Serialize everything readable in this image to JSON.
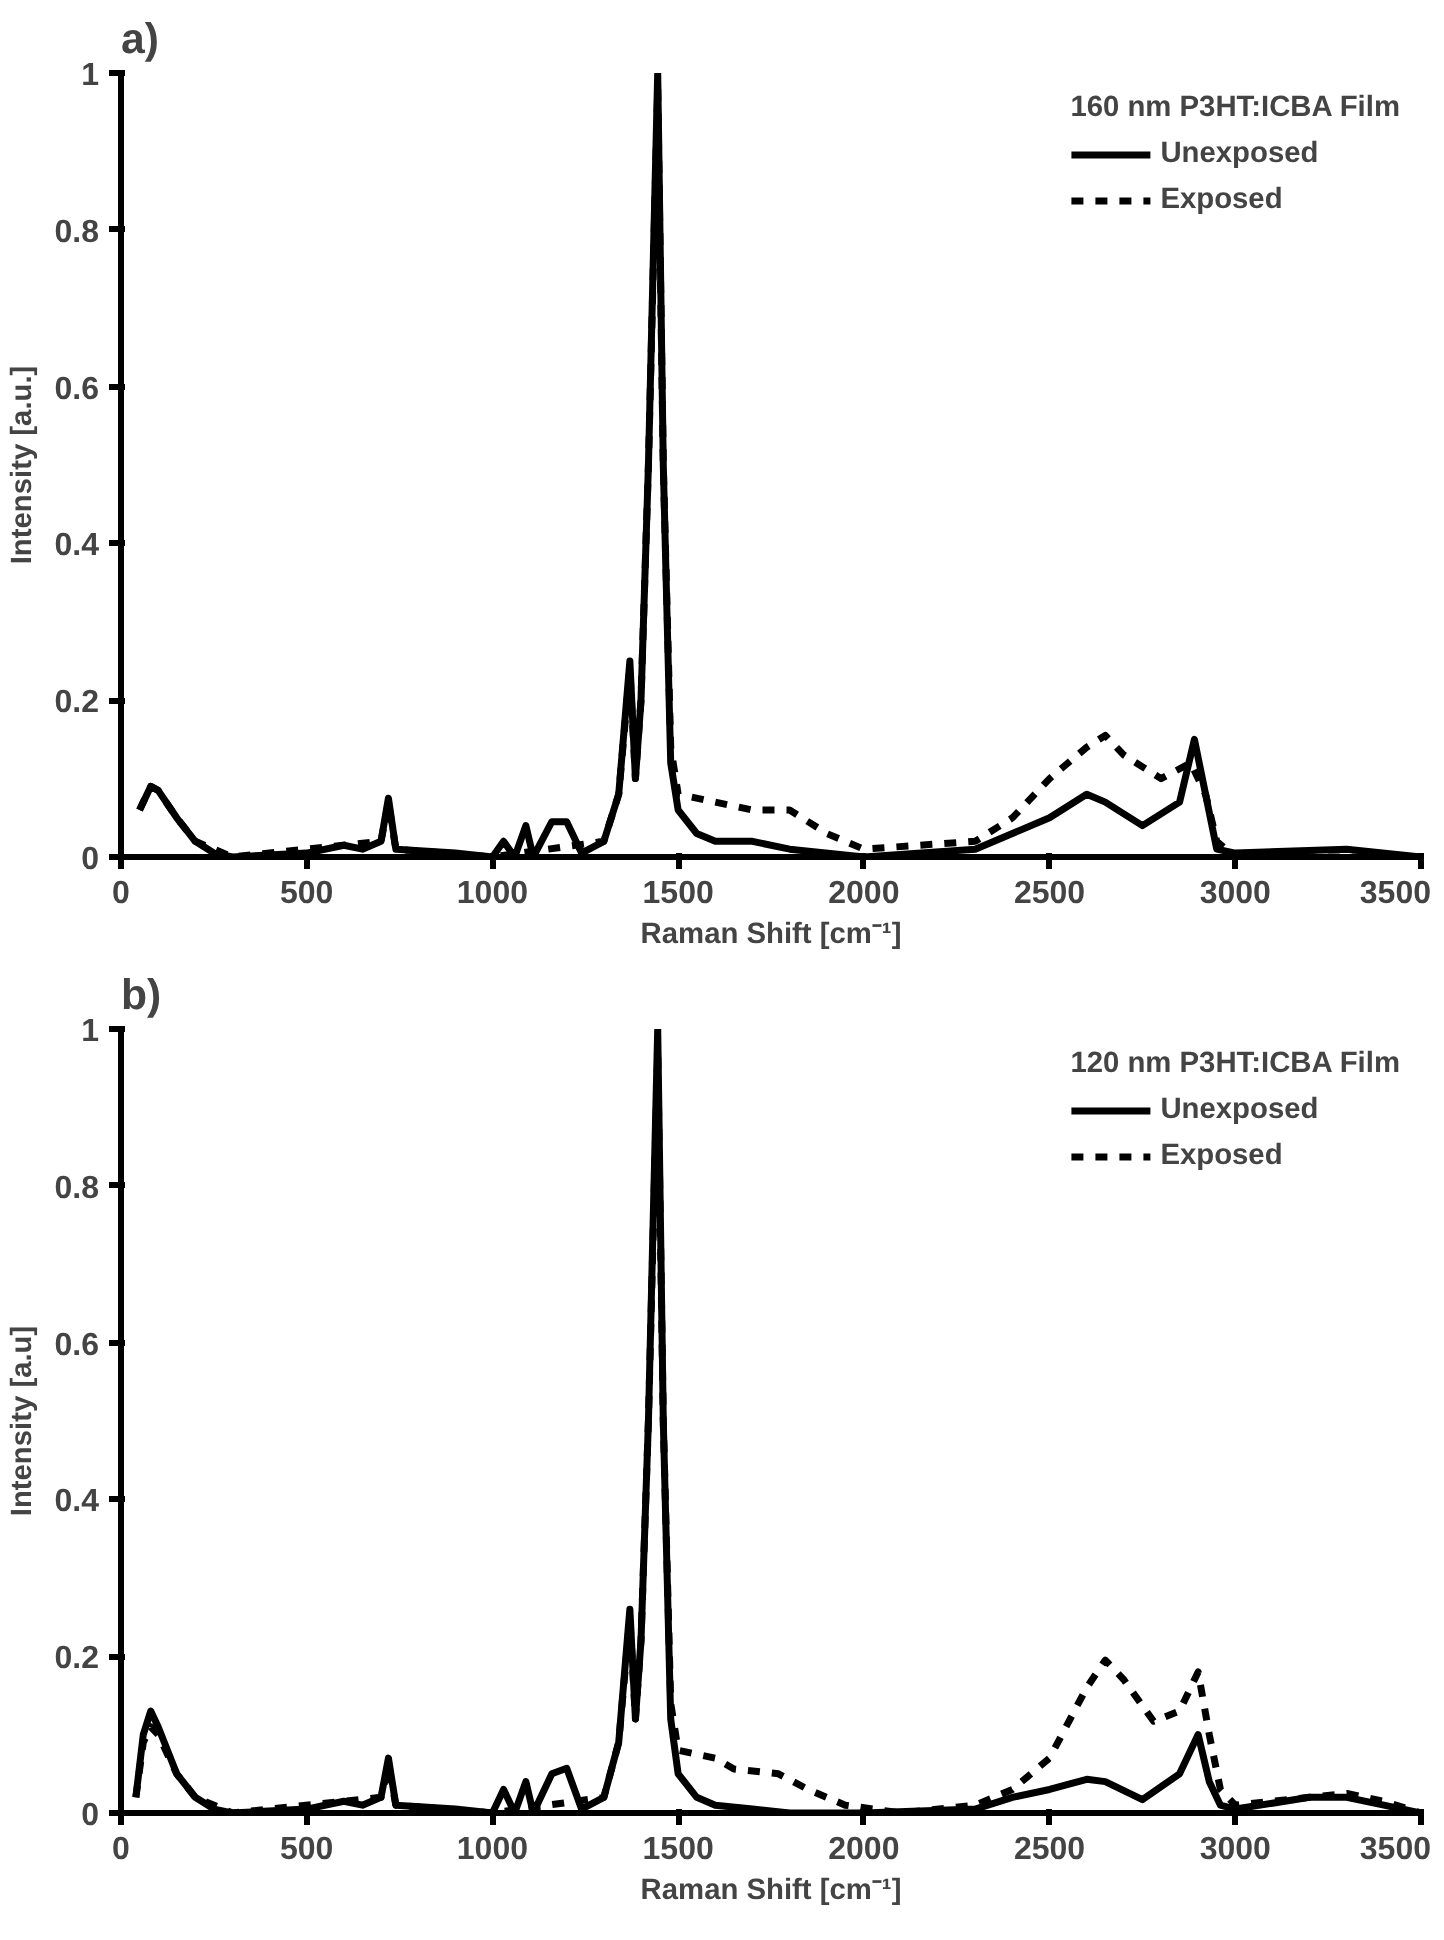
{
  "chart_data": [
    {
      "type": "line",
      "title": "a)",
      "legend_title": "160 nm P3HT:ICBA Film",
      "xlabel": "Raman Shift [cm⁻¹]",
      "ylabel": "Intensity [a.u.]",
      "xlim": [
        0,
        3500
      ],
      "ylim": [
        0,
        1
      ],
      "xticks": [
        0,
        500,
        1000,
        1500,
        2000,
        2500,
        3000,
        3500
      ],
      "yticks": [
        0,
        0.2,
        0.4,
        0.6,
        0.8,
        1
      ],
      "legend": "top right",
      "grid": false,
      "series": [
        {
          "name": "Unexposed",
          "color": "#000000",
          "line_style": "solid",
          "x": [
            50,
            80,
            100,
            150,
            200,
            250,
            300,
            500,
            600,
            650,
            700,
            720,
            740,
            900,
            1000,
            1030,
            1060,
            1090,
            1110,
            1160,
            1200,
            1240,
            1300,
            1340,
            1370,
            1385,
            1400,
            1420,
            1445,
            1460,
            1480,
            1500,
            1550,
            1600,
            1700,
            1800,
            2000,
            2300,
            2400,
            2500,
            2600,
            2650,
            2750,
            2850,
            2890,
            2920,
            2950,
            3000,
            3300,
            3500
          ],
          "values": [
            0.06,
            0.09,
            0.085,
            0.05,
            0.02,
            0.005,
            0,
            0.005,
            0.015,
            0.01,
            0.02,
            0.075,
            0.01,
            0.005,
            0,
            0.02,
            0,
            0.04,
            0,
            0.045,
            0.045,
            0.005,
            0.02,
            0.08,
            0.25,
            0.1,
            0.2,
            0.5,
            1.0,
            0.5,
            0.12,
            0.06,
            0.03,
            0.02,
            0.02,
            0.01,
            0,
            0.01,
            0.03,
            0.05,
            0.08,
            0.07,
            0.04,
            0.07,
            0.15,
            0.08,
            0.01,
            0.005,
            0.01,
            0
          ]
        },
        {
          "name": "Exposed",
          "color": "#000000",
          "line_style": "dashed",
          "x": [
            50,
            80,
            100,
            150,
            200,
            300,
            700,
            720,
            740,
            1000,
            1300,
            1340,
            1370,
            1385,
            1400,
            1420,
            1445,
            1460,
            1480,
            1500,
            1600,
            1700,
            1800,
            1900,
            2000,
            2300,
            2400,
            2500,
            2600,
            2650,
            2700,
            2800,
            2880,
            2920,
            2950,
            3000,
            3500
          ],
          "values": [
            0.06,
            0.09,
            0.085,
            0.05,
            0.02,
            0,
            0.02,
            0.07,
            0.01,
            0,
            0.02,
            0.08,
            0.24,
            0.1,
            0.2,
            0.5,
            0.98,
            0.5,
            0.14,
            0.08,
            0.07,
            0.06,
            0.06,
            0.03,
            0.01,
            0.02,
            0.05,
            0.1,
            0.14,
            0.155,
            0.13,
            0.1,
            0.12,
            0.08,
            0.02,
            0,
            0
          ]
        }
      ]
    },
    {
      "type": "line",
      "title": "b)",
      "legend_title": "120 nm P3HT:ICBA Film",
      "xlabel": "Raman Shift [cm⁻¹]",
      "ylabel": "Intensity [a.u]",
      "xlim": [
        0,
        3500
      ],
      "ylim": [
        0,
        1
      ],
      "xticks": [
        0,
        500,
        1000,
        1500,
        2000,
        2500,
        3000,
        3500
      ],
      "yticks": [
        0,
        0.2,
        0.4,
        0.6,
        0.8,
        1
      ],
      "legend": "top right",
      "grid": false,
      "series": [
        {
          "name": "Unexposed",
          "color": "#000000",
          "line_style": "solid",
          "x": [
            40,
            60,
            80,
            100,
            150,
            200,
            250,
            300,
            500,
            600,
            650,
            700,
            720,
            740,
            900,
            1000,
            1030,
            1060,
            1090,
            1110,
            1160,
            1200,
            1240,
            1300,
            1340,
            1370,
            1385,
            1400,
            1420,
            1445,
            1460,
            1480,
            1500,
            1550,
            1600,
            1700,
            1800,
            2000,
            2300,
            2400,
            2500,
            2600,
            2650,
            2750,
            2850,
            2900,
            2930,
            2960,
            3000,
            3200,
            3300,
            3400,
            3500
          ],
          "values": [
            0.02,
            0.1,
            0.13,
            0.11,
            0.05,
            0.02,
            0.005,
            0,
            0.005,
            0.015,
            0.01,
            0.02,
            0.07,
            0.01,
            0.005,
            0,
            0.03,
            0,
            0.04,
            0,
            0.05,
            0.057,
            0.005,
            0.02,
            0.09,
            0.26,
            0.12,
            0.22,
            0.5,
            1.0,
            0.5,
            0.12,
            0.05,
            0.02,
            0.01,
            0.005,
            0,
            0,
            0.005,
            0.02,
            0.03,
            0.043,
            0.04,
            0.017,
            0.05,
            0.1,
            0.04,
            0.01,
            0.005,
            0.02,
            0.02,
            0.01,
            0
          ]
        },
        {
          "name": "Exposed",
          "color": "#000000",
          "line_style": "dashed",
          "x": [
            40,
            60,
            80,
            100,
            150,
            200,
            300,
            700,
            720,
            740,
            1000,
            1300,
            1340,
            1370,
            1385,
            1400,
            1420,
            1445,
            1460,
            1480,
            1500,
            1600,
            1650,
            1770,
            1850,
            1950,
            2100,
            2300,
            2400,
            2500,
            2600,
            2650,
            2700,
            2780,
            2850,
            2900,
            2930,
            2960,
            3000,
            3200,
            3300,
            3400,
            3500
          ],
          "values": [
            0.02,
            0.09,
            0.11,
            0.1,
            0.05,
            0.02,
            0,
            0.02,
            0.06,
            0.01,
            0,
            0.02,
            0.09,
            0.25,
            0.12,
            0.22,
            0.5,
            0.97,
            0.5,
            0.14,
            0.08,
            0.07,
            0.056,
            0.05,
            0.03,
            0.01,
            0,
            0.01,
            0.03,
            0.07,
            0.16,
            0.195,
            0.17,
            0.117,
            0.13,
            0.18,
            0.1,
            0.03,
            0.01,
            0.02,
            0.025,
            0.015,
            0
          ]
        }
      ]
    }
  ]
}
